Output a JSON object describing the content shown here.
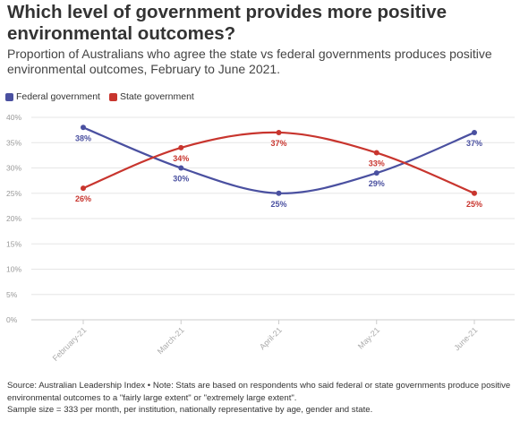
{
  "header": {
    "title": "Which level of government provides more positive environmental outcomes?",
    "subtitle": "Proportion of Australians who agree the state vs federal governments produces positive environmental outcomes, February to June 2021."
  },
  "legend": {
    "items": [
      {
        "label": "Federal government",
        "color": "#4a50a0"
      },
      {
        "label": "State government",
        "color": "#c8352e"
      }
    ]
  },
  "chart_data": {
    "type": "line",
    "categories": [
      "February-21",
      "March-21",
      "April-21",
      "May-21",
      "June-21"
    ],
    "series": [
      {
        "name": "Federal government",
        "color": "#4a50a0",
        "values": [
          38,
          30,
          25,
          29,
          37
        ],
        "labels": [
          "38%",
          "30%",
          "25%",
          "29%",
          "37%"
        ]
      },
      {
        "name": "State government",
        "color": "#c8352e",
        "values": [
          26,
          34,
          37,
          33,
          25
        ],
        "labels": [
          "26%",
          "34%",
          "37%",
          "33%",
          "25%"
        ]
      }
    ],
    "ylim": [
      0,
      40
    ],
    "yticks": [
      0,
      5,
      10,
      15,
      20,
      25,
      30,
      35,
      40
    ],
    "ytick_labels": [
      "0%",
      "5%",
      "10%",
      "15%",
      "20%",
      "25%",
      "30%",
      "35%",
      "40%"
    ],
    "grid": true,
    "legend_position": "top-left",
    "smooth": true
  },
  "footnote": {
    "line1": "Source: Australian Leadership Index • Note: Stats are based on respondents who said federal or state governments produce positive environmental outcomes to a \"fairly large extent\" or \"extremely large extent\".",
    "line2": "Sample size = 333 per month, per institution, nationally representative by age, gender and state."
  }
}
